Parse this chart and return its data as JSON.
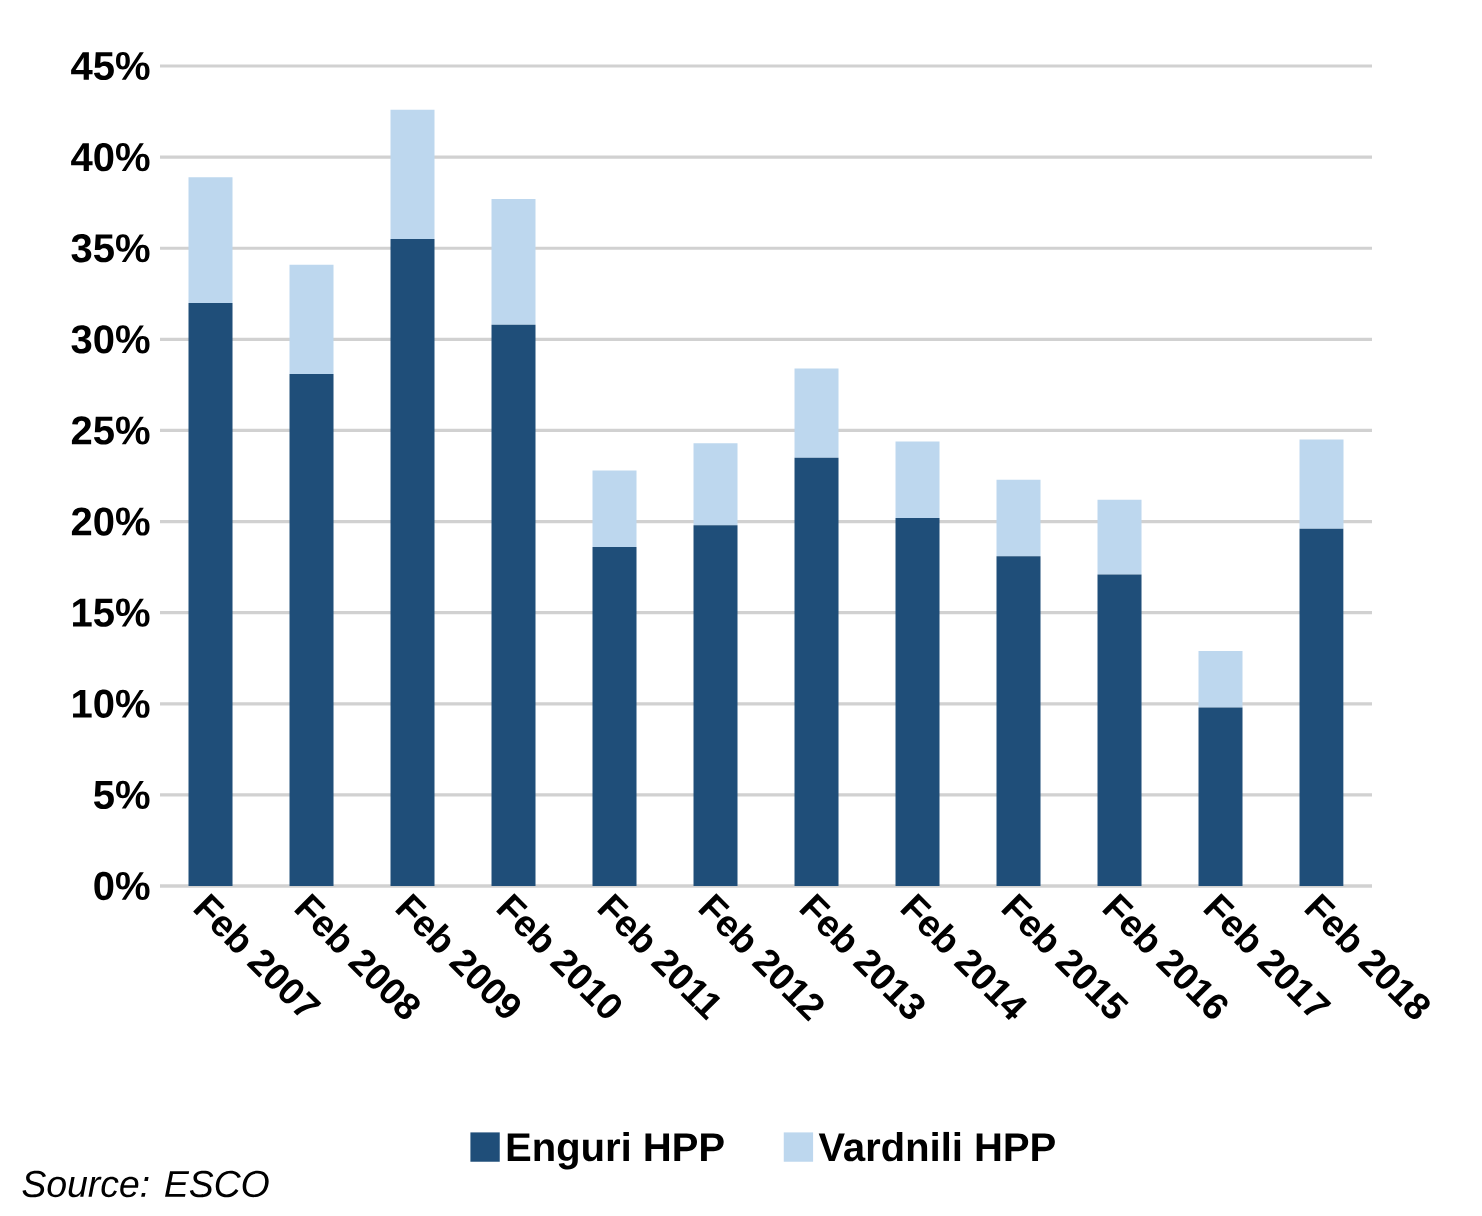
{
  "chart_data": {
    "type": "bar",
    "stacked": true,
    "categories": [
      "Feb 2007",
      "Feb 2008",
      "Feb 2009",
      "Feb 2010",
      "Feb 2011",
      "Feb 2012",
      "Feb 2013",
      "Feb 2014",
      "Feb 2015",
      "Feb 2016",
      "Feb 2017",
      "Feb 2018"
    ],
    "series": [
      {
        "name": "Enguri HPP",
        "color": "#1f4e79",
        "values": [
          32.0,
          28.1,
          35.5,
          30.8,
          18.6,
          19.8,
          23.5,
          20.2,
          18.1,
          17.1,
          9.8,
          19.6
        ]
      },
      {
        "name": "Vardnili HPP",
        "color": "#bdd7ee",
        "values": [
          6.9,
          6.0,
          7.1,
          6.9,
          4.2,
          4.5,
          4.9,
          4.2,
          4.2,
          4.1,
          3.1,
          4.9
        ]
      }
    ],
    "ylim": [
      0,
      45
    ],
    "yticks": [
      {
        "value": 0,
        "label": "0%"
      },
      {
        "value": 5,
        "label": "5%"
      },
      {
        "value": 10,
        "label": "10%"
      },
      {
        "value": 15,
        "label": "15%"
      },
      {
        "value": 20,
        "label": "20%"
      },
      {
        "value": 25,
        "label": "25%"
      },
      {
        "value": 30,
        "label": "30%"
      },
      {
        "value": 35,
        "label": "35%"
      },
      {
        "value": 40,
        "label": "40%"
      },
      {
        "value": 45,
        "label": "45%"
      }
    ],
    "grid": "y",
    "legend": "bottom",
    "annotations": [
      "Source: ESCO"
    ]
  }
}
